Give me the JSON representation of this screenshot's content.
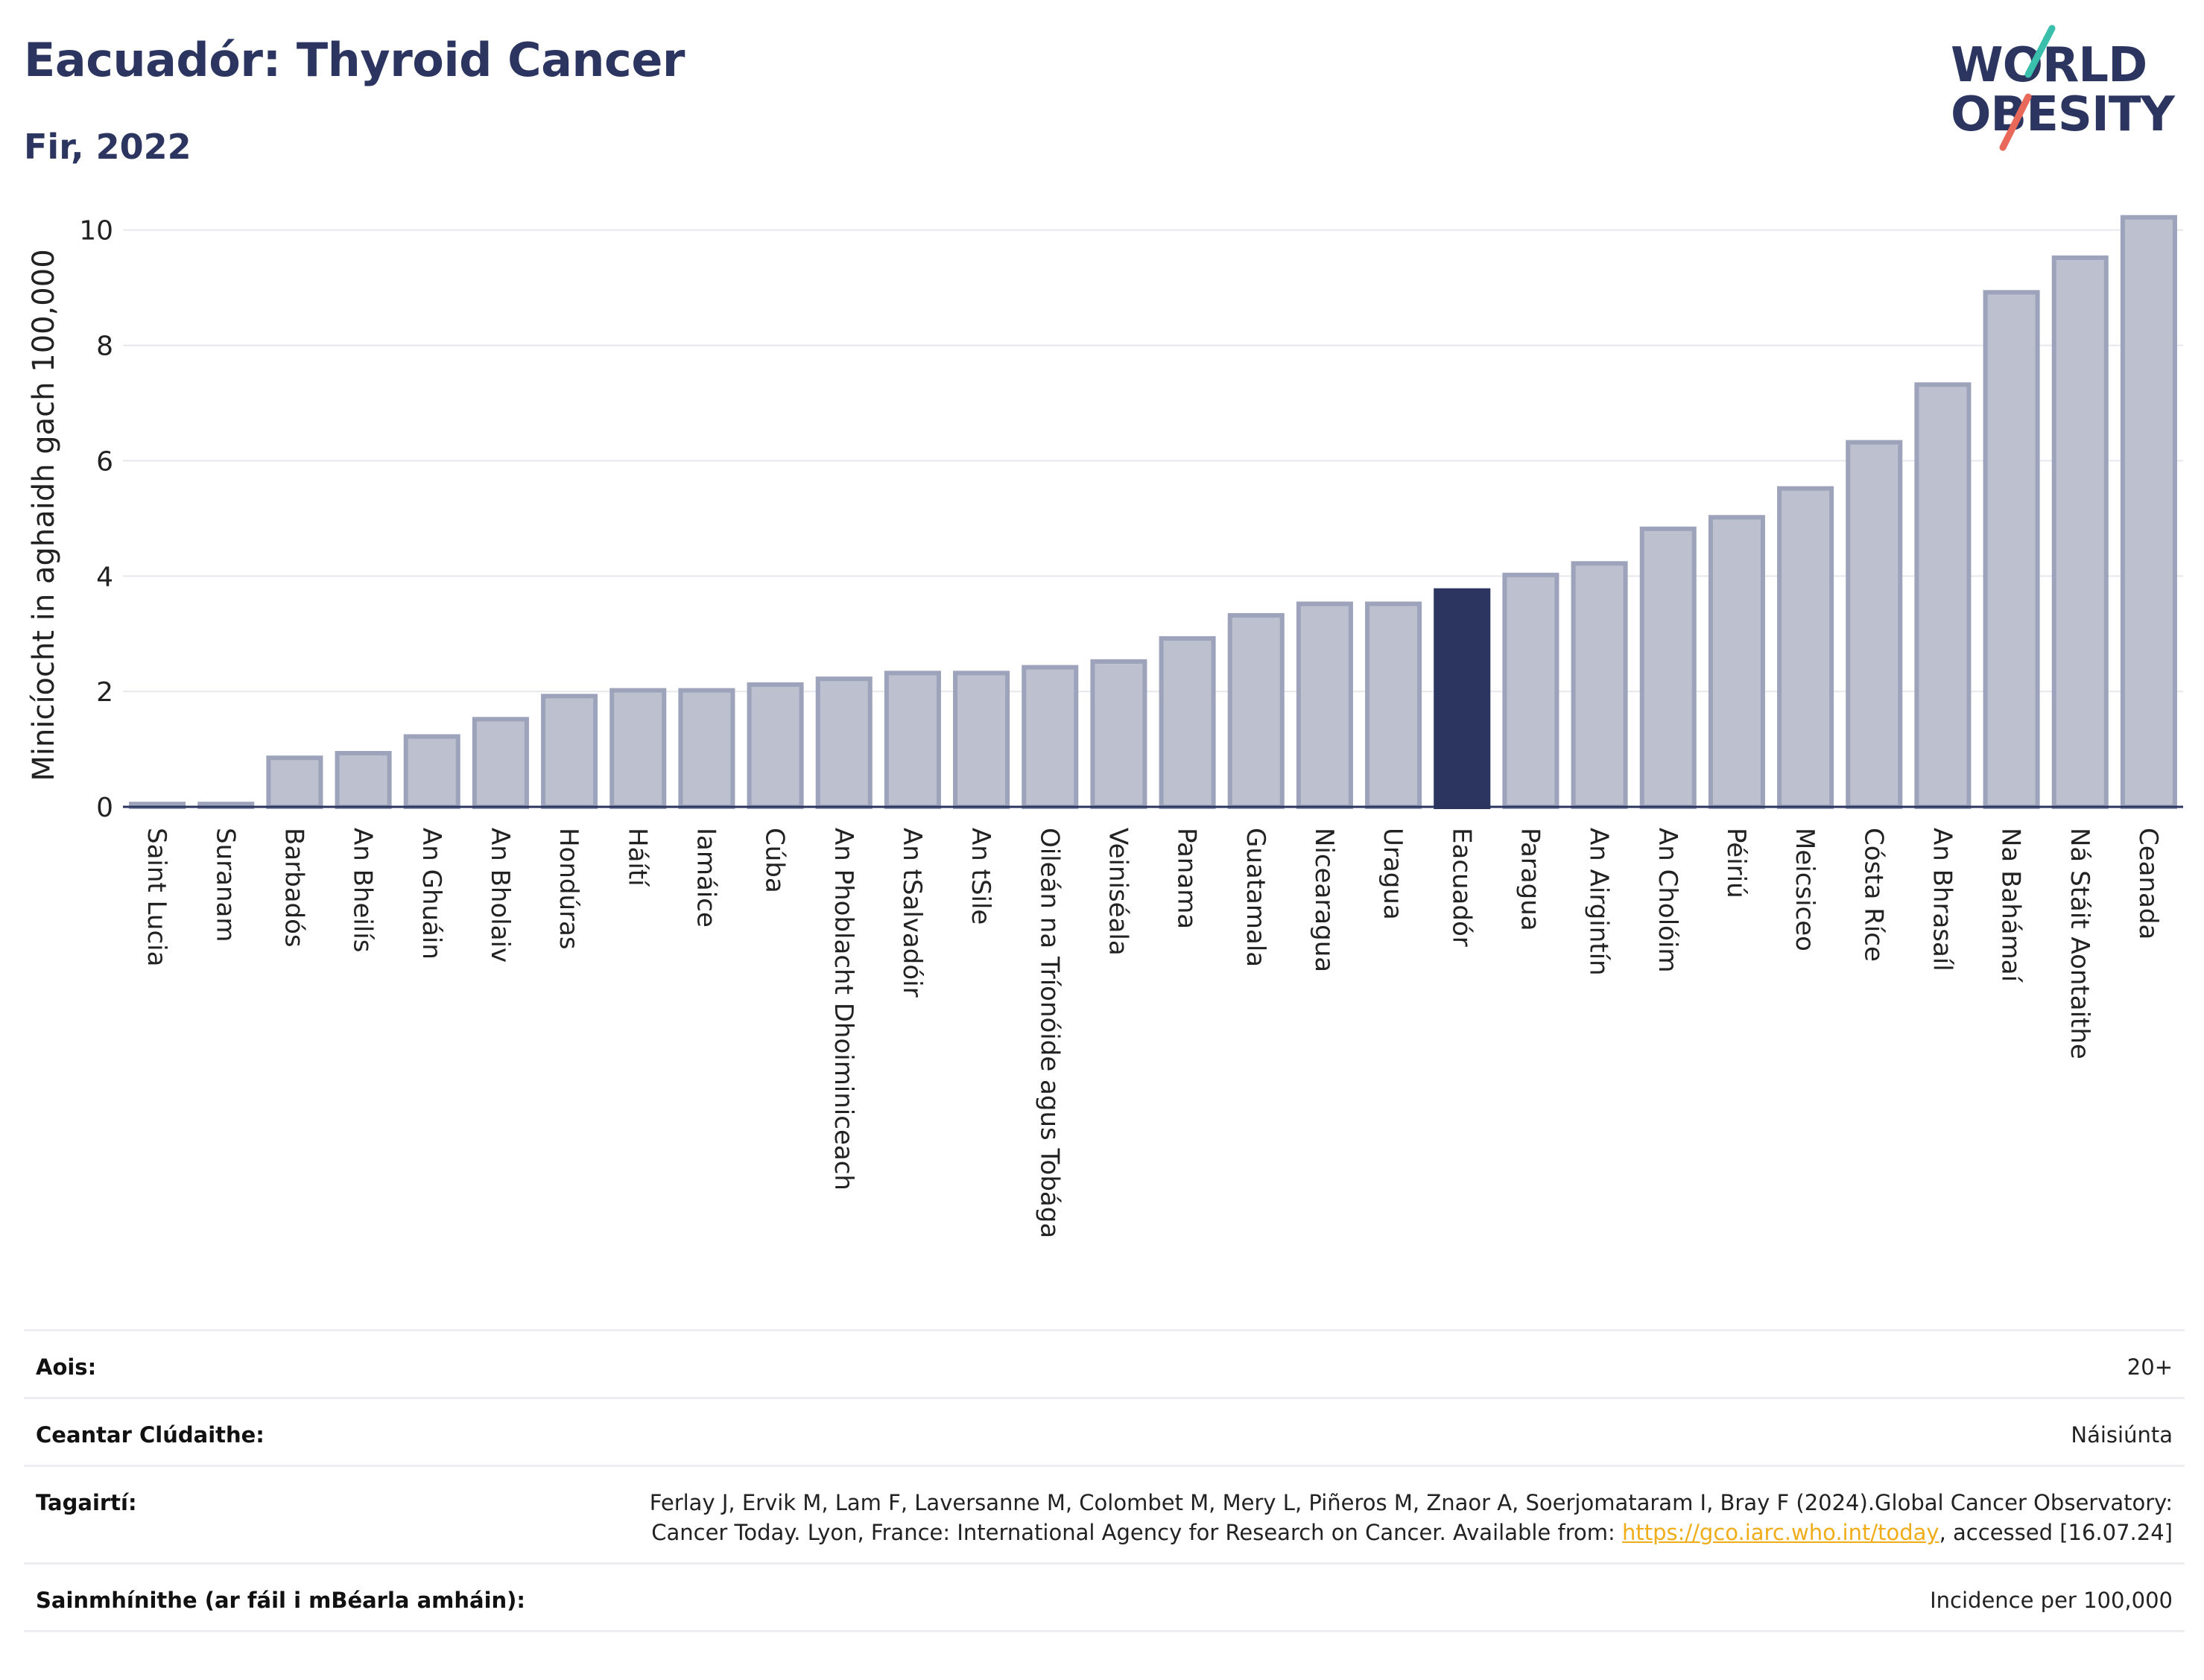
{
  "header": {
    "title": "Eacuadór: Thyroid Cancer",
    "subtitle": "Fir, 2022"
  },
  "logo": {
    "line1": "WORLD",
    "line2": "OBESITY",
    "accent_teal": "#3bbfad",
    "accent_coral": "#e8685a"
  },
  "chart_data": {
    "type": "bar",
    "ylabel": "Minicíocht in aghaidh gach 100,000",
    "ylim": [
      0,
      10.5
    ],
    "yticks": [
      0,
      2,
      4,
      6,
      8,
      10
    ],
    "grid": true,
    "highlight": "Eacuadór",
    "colors": {
      "bar": "#bcc0cf",
      "bar_border": "#9da3ba",
      "highlight": "#2b355f",
      "axis": "#2b355f",
      "grid": "#e6e8ee"
    },
    "categories": [
      "Saint Lucia",
      "Suranam",
      "Barbadós",
      "An Bheilís",
      "An Ghuáin",
      "An Bholaiv",
      "Hondúras",
      "Háítí",
      "Iamáice",
      "Cúba",
      "An Phoblacht Dhoiminiceach",
      "An tSalvadóir",
      "An tSile",
      "Oileán na Tríonóide agus Tobága",
      "Veiniséala",
      "Panama",
      "Guatamala",
      "Nicearagua",
      "Uragua",
      "Eacuadór",
      "Paragua",
      "An Airgintín",
      "An Cholóim",
      "Péiriú",
      "Meicsiceo",
      "Cósta Ríce",
      "An Bhrasaíl",
      "Na Bahámaí",
      "Ná Stáit Aontaithe",
      "Ceanada"
    ],
    "values": [
      0.05,
      0.05,
      0.85,
      0.93,
      1.22,
      1.52,
      1.92,
      2.02,
      2.02,
      2.12,
      2.22,
      2.32,
      2.32,
      2.42,
      2.52,
      2.92,
      3.32,
      3.52,
      3.52,
      3.75,
      4.02,
      4.22,
      4.82,
      5.02,
      5.52,
      6.32,
      7.32,
      8.92,
      9.52,
      10.22
    ]
  },
  "info": {
    "age_label": "Aois:",
    "age_value": "20+",
    "coverage_label": "Ceantar Clúdaithe:",
    "coverage_value": "Náisiúnta",
    "refs_label": "Tagairtí:",
    "refs_text_1": "Ferlay J, Ervik M, Lam F, Laversanne M, Colombet M, Mery L, Piñeros M, Znaor A, Soerjomataram I, Bray F (2024).Global Cancer Observatory: Cancer Today. Lyon, France: International Agency for Research on Cancer. Available from: ",
    "refs_link": "https://gco.iarc.who.int/today",
    "refs_text_2": ", accessed [16.07.24]",
    "defs_label": "Sainmhínithe (ar fáil i mBéarla amháin):",
    "defs_value": "Incidence per 100,000"
  }
}
